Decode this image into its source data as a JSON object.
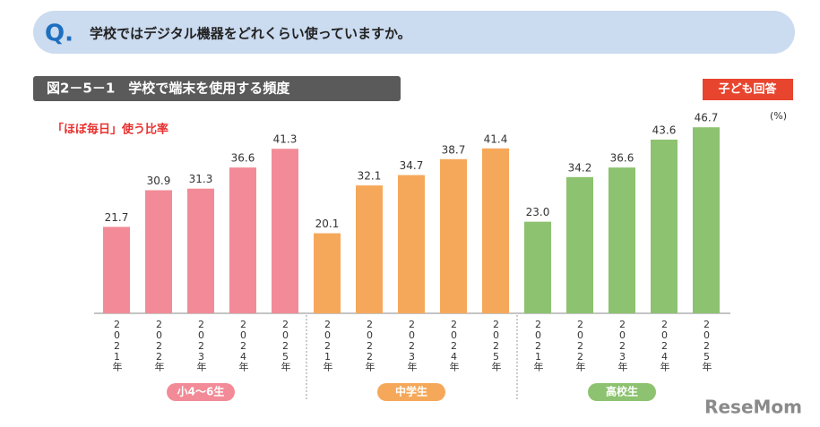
{
  "question": {
    "marker": "Q.",
    "text": "学校ではデジタル機器をどれくらい使っていますか。"
  },
  "chart_data": {
    "type": "bar",
    "title": "図2－5－1　学校で端末を使用する頻度",
    "badge": "子ども回答",
    "subtitle": "「ほぼ毎日」使う比率",
    "unit": "(%)",
    "groups": [
      {
        "name": "小4〜6生",
        "color": "#f28b97",
        "categories": [
          "2021年",
          "2022年",
          "2023年",
          "2024年",
          "2025年"
        ],
        "values": [
          21.7,
          30.9,
          31.3,
          36.6,
          41.3
        ],
        "value_labels": [
          "21.7",
          "30.9",
          "31.3",
          "36.6",
          "41.3"
        ]
      },
      {
        "name": "中学生",
        "color": "#f6a85a",
        "categories": [
          "2021年",
          "2022年",
          "2023年",
          "2024年",
          "2025年"
        ],
        "values": [
          20.1,
          32.1,
          34.7,
          38.7,
          41.4
        ],
        "value_labels": [
          "20.1",
          "32.1",
          "34.7",
          "38.7",
          "41.4"
        ]
      },
      {
        "name": "高校生",
        "color": "#8dc270",
        "categories": [
          "2021年",
          "2022年",
          "2023年",
          "2024年",
          "2025年"
        ],
        "values": [
          23.0,
          34.2,
          36.6,
          43.6,
          46.7
        ],
        "value_labels": [
          "23.0",
          "34.2",
          "36.6",
          "43.6",
          "46.7"
        ]
      }
    ]
  },
  "watermark": "ReseMom"
}
